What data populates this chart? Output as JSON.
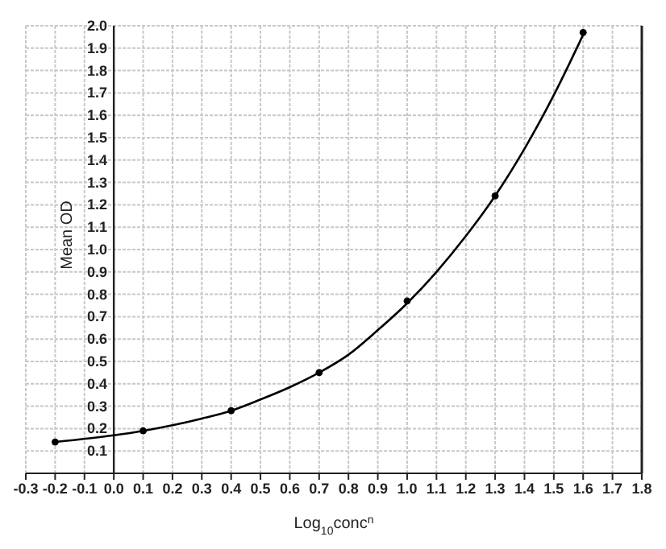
{
  "chart_data": {
    "type": "scatter",
    "xlabel": "Log$_{10}$conc$^{n}$",
    "ylabel": "Mean OD",
    "xlim": [
      -0.3,
      1.8
    ],
    "ylim": [
      0,
      2
    ],
    "xticks": [
      -0.3,
      -0.2,
      -0.1,
      {
        "value": 0,
        "label": "0.0"
      },
      0.1,
      0.2,
      0.3,
      0.4,
      0.5,
      0.6,
      0.7,
      0.8,
      0.9,
      {
        "value": 1,
        "label": "1.0"
      },
      1.1,
      1.2,
      1.3,
      1.4,
      1.5,
      1.6,
      1.7,
      1.8
    ],
    "yticks": [
      0.1,
      0.2,
      0.3,
      0.4,
      0.5,
      0.6,
      0.7,
      0.8,
      0.9,
      {
        "value": 1,
        "label": "1.0"
      },
      1.1,
      1.2,
      1.3,
      1.4,
      1.5,
      1.6,
      1.7,
      1.8,
      1.9,
      {
        "value": 2,
        "label": "2.0"
      }
    ],
    "grid": true,
    "marker": "circle",
    "series": [
      {
        "color": "#000000",
        "x": [
          -0.2,
          0.1,
          0.4,
          0.7,
          1.0,
          1.3,
          1.6
        ],
        "values": [
          0.14,
          0.19,
          0.28,
          0.45,
          0.77,
          1.24,
          1.97
        ]
      },
      {
        "type": "line",
        "color": "#000000",
        "marker": "none",
        "line_style": "solid",
        "x": [
          -0.2,
          0,
          0.1,
          0.2,
          0.3,
          0.4,
          0.5,
          0.6,
          0.7,
          0.8,
          0.9,
          1.0,
          1.1,
          1.2,
          1.3,
          1.4,
          1.5,
          1.6
        ],
        "values": [
          0.14,
          0.17,
          0.19,
          0.215,
          0.245,
          0.28,
          0.33,
          0.385,
          0.45,
          0.53,
          0.64,
          0.76,
          0.9,
          1.06,
          1.24,
          1.45,
          1.69,
          1.96
        ]
      }
    ]
  }
}
